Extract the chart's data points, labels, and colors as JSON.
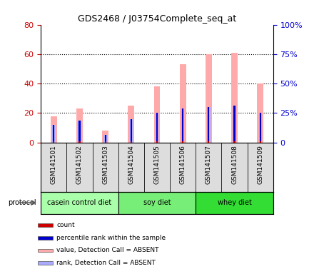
{
  "title": "GDS2468 / J03754Complete_seq_at",
  "samples": [
    "GSM141501",
    "GSM141502",
    "GSM141503",
    "GSM141504",
    "GSM141505",
    "GSM141506",
    "GSM141507",
    "GSM141508",
    "GSM141509"
  ],
  "absent_value_bars": [
    18,
    23,
    8,
    25,
    38,
    53,
    60,
    61,
    40
  ],
  "absent_rank_bars": [
    12,
    15,
    5,
    16,
    20,
    23,
    24,
    25,
    20
  ],
  "count_values": [
    1,
    1,
    1,
    1,
    1,
    1,
    1,
    1,
    1
  ],
  "percentile_values": [
    12,
    15,
    5,
    16,
    20,
    23,
    24,
    25,
    20
  ],
  "ylim_left": [
    0,
    80
  ],
  "ylim_right": [
    0,
    100
  ],
  "yticks_left": [
    0,
    20,
    40,
    60,
    80
  ],
  "yticks_right": [
    0,
    25,
    50,
    75,
    100
  ],
  "protocols": [
    {
      "label": "casein control diet",
      "start": 0,
      "end": 2,
      "color": "#aaffaa"
    },
    {
      "label": "soy diet",
      "start": 3,
      "end": 5,
      "color": "#77ee77"
    },
    {
      "label": "whey diet",
      "start": 6,
      "end": 8,
      "color": "#33dd33"
    }
  ],
  "legend_items": [
    {
      "color": "#cc0000",
      "label": "count"
    },
    {
      "color": "#0000cc",
      "label": "percentile rank within the sample"
    },
    {
      "color": "#ffaaaa",
      "label": "value, Detection Call = ABSENT"
    },
    {
      "color": "#aaaaff",
      "label": "rank, Detection Call = ABSENT"
    }
  ],
  "left_tick_color": "#cc0000",
  "right_tick_color": "#0000cc",
  "protocol_label": "protocol",
  "background_color": "#ffffff"
}
